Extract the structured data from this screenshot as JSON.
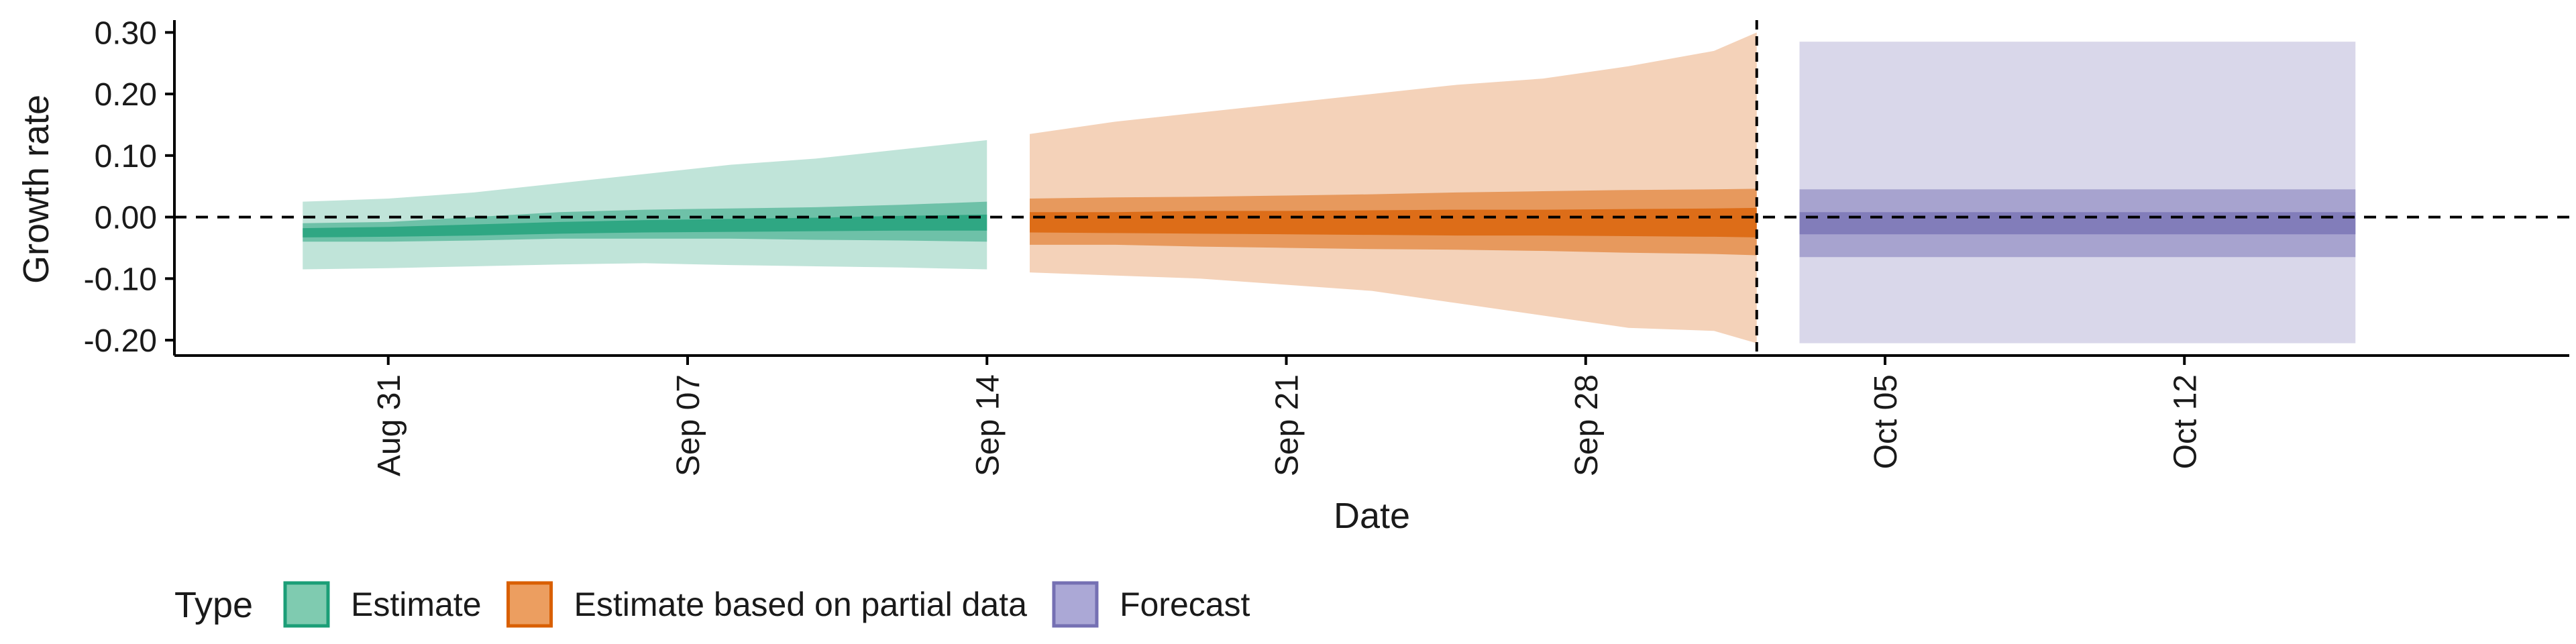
{
  "chart_data": {
    "type": "area",
    "title": "",
    "xlabel": "Date",
    "ylabel": "Growth rate",
    "x_ticks": [
      "Aug 31",
      "Sep 07",
      "Sep 14",
      "Sep 21",
      "Sep 28",
      "Oct 05",
      "Oct 12"
    ],
    "y_ticks": [
      "0.30",
      "0.20",
      "0.10",
      "0.00",
      "-0.10",
      "-0.20"
    ],
    "ylim": [
      -0.225,
      0.32
    ],
    "xlim": [
      "2020-08-26",
      "2020-10-21"
    ],
    "reference_lines": {
      "horizontal_y": 0,
      "vertical_date": "2020-10-02"
    },
    "legend": {
      "title": "Type",
      "position": "bottom",
      "items": [
        {
          "label": "Estimate",
          "fill": "#7fcbb0",
          "stroke": "#1b9e77"
        },
        {
          "label": "Estimate based on partial data",
          "fill": "#ec9e60",
          "stroke": "#d95f02"
        },
        {
          "label": "Forecast",
          "fill": "#aba8d6",
          "stroke": "#7570b3"
        }
      ]
    },
    "series": [
      {
        "name": "Estimate",
        "color": "#1b9e77",
        "dates": [
          "2020-08-29",
          "2020-08-31",
          "2020-09-02",
          "2020-09-04",
          "2020-09-06",
          "2020-09-08",
          "2020-09-10",
          "2020-09-12",
          "2020-09-14"
        ],
        "bands": [
          {
            "level": "90%",
            "lower": [
              -0.085,
              -0.083,
              -0.08,
              -0.077,
              -0.075,
              -0.078,
              -0.08,
              -0.082,
              -0.085
            ],
            "upper": [
              0.025,
              0.03,
              0.04,
              0.055,
              0.07,
              0.085,
              0.095,
              0.11,
              0.125
            ]
          },
          {
            "level": "50%",
            "lower": [
              -0.04,
              -0.04,
              -0.038,
              -0.035,
              -0.035,
              -0.035,
              -0.037,
              -0.038,
              -0.04
            ],
            "upper": [
              -0.01,
              -0.008,
              0.0,
              0.008,
              0.012,
              0.014,
              0.016,
              0.02,
              0.025
            ]
          },
          {
            "level": "20%",
            "lower": [
              -0.033,
              -0.032,
              -0.03,
              -0.027,
              -0.025,
              -0.024,
              -0.023,
              -0.022,
              -0.022
            ],
            "upper": [
              -0.018,
              -0.016,
              -0.012,
              -0.008,
              -0.005,
              -0.003,
              -0.001,
              0.002,
              0.004
            ]
          }
        ]
      },
      {
        "name": "Estimate based on partial data",
        "color": "#d95f02",
        "dates": [
          "2020-09-15",
          "2020-09-17",
          "2020-09-19",
          "2020-09-21",
          "2020-09-23",
          "2020-09-25",
          "2020-09-27",
          "2020-09-29",
          "2020-10-01",
          "2020-10-02"
        ],
        "bands": [
          {
            "level": "90%",
            "lower": [
              -0.09,
              -0.095,
              -0.1,
              -0.11,
              -0.12,
              -0.14,
              -0.16,
              -0.18,
              -0.185,
              -0.205
            ],
            "upper": [
              0.135,
              0.155,
              0.17,
              0.185,
              0.2,
              0.215,
              0.225,
              0.245,
              0.27,
              0.3
            ]
          },
          {
            "level": "50%",
            "lower": [
              -0.045,
              -0.045,
              -0.048,
              -0.05,
              -0.052,
              -0.053,
              -0.055,
              -0.058,
              -0.06,
              -0.062
            ],
            "upper": [
              0.03,
              0.032,
              0.033,
              0.035,
              0.037,
              0.04,
              0.042,
              0.044,
              0.045,
              0.046
            ]
          },
          {
            "level": "20%",
            "lower": [
              -0.025,
              -0.026,
              -0.027,
              -0.028,
              -0.029,
              -0.03,
              -0.03,
              -0.031,
              -0.032,
              -0.033
            ],
            "upper": [
              0.008,
              0.008,
              0.01,
              0.01,
              0.011,
              0.012,
              0.012,
              0.013,
              0.014,
              0.015
            ]
          }
        ]
      },
      {
        "name": "Forecast",
        "color": "#7570b3",
        "dates": [
          "2020-10-03",
          "2020-10-16"
        ],
        "bands": [
          {
            "level": "90%",
            "lower": [
              -0.205,
              -0.205
            ],
            "upper": [
              0.285,
              0.285
            ]
          },
          {
            "level": "50%",
            "lower": [
              -0.065,
              -0.065
            ],
            "upper": [
              0.045,
              0.045
            ]
          },
          {
            "level": "20%",
            "lower": [
              -0.028,
              -0.028
            ],
            "upper": [
              0.008,
              0.008
            ]
          }
        ]
      }
    ]
  }
}
